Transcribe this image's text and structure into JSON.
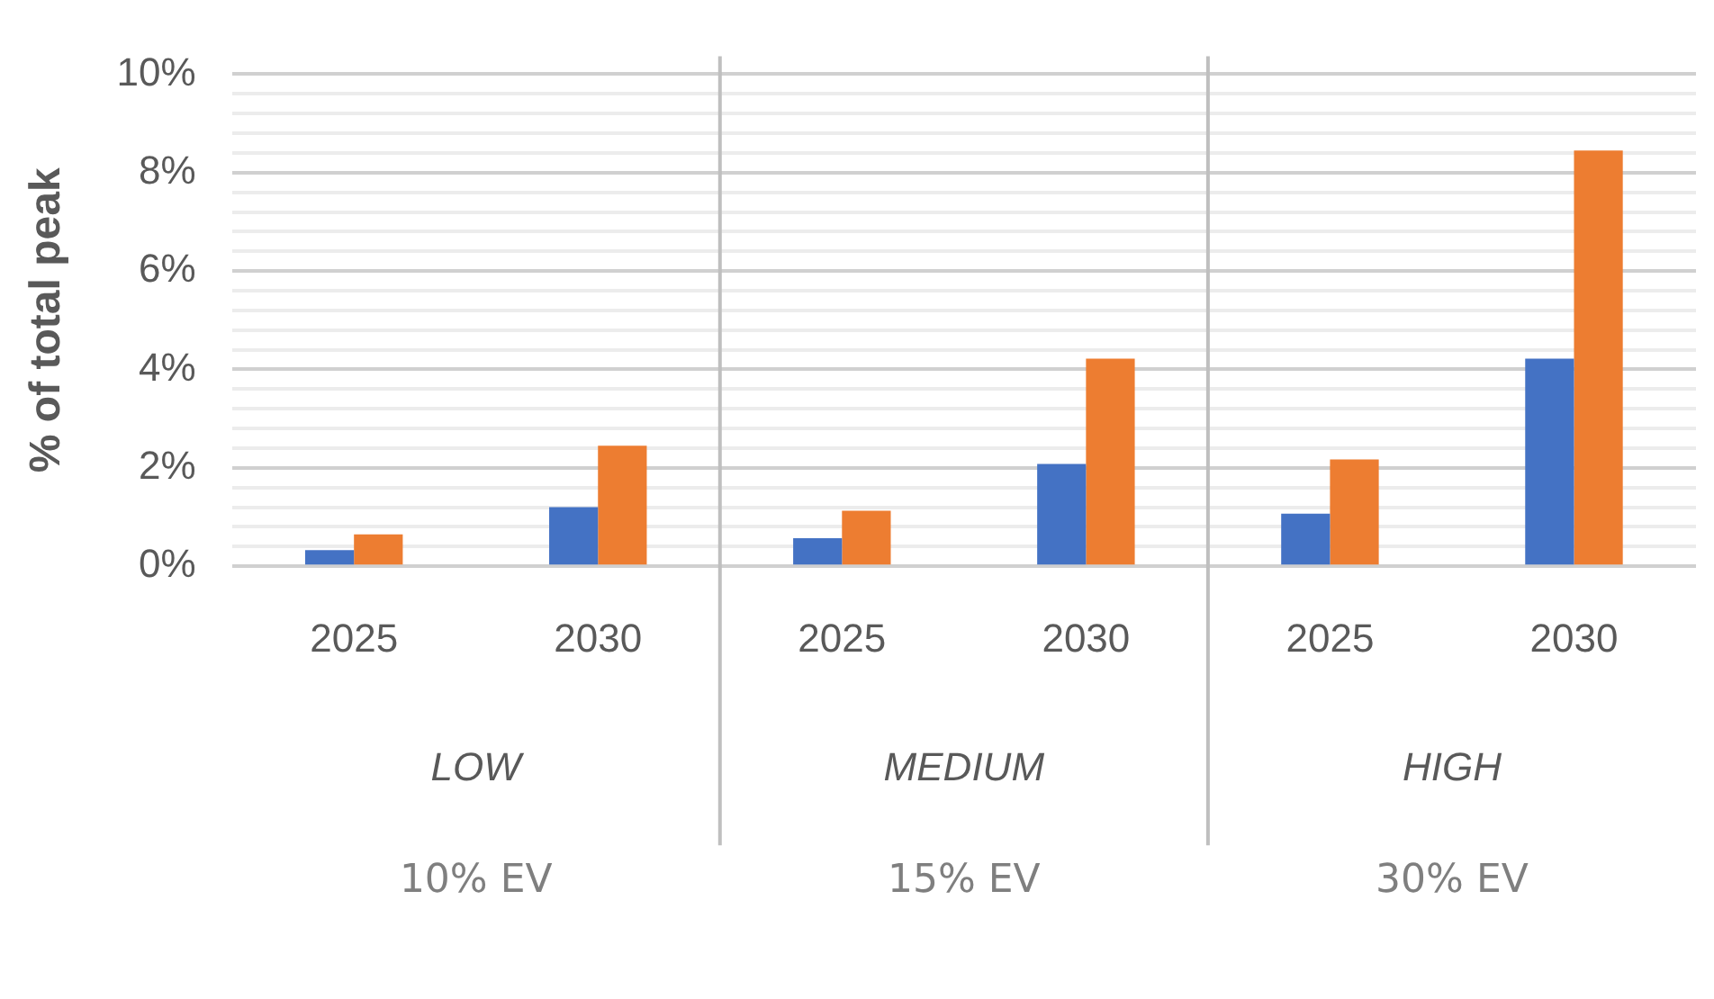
{
  "chart_data": {
    "type": "bar",
    "ylabel": "% of total peak",
    "categories": [
      "2025",
      "2030",
      "2025",
      "2030",
      "2025",
      "2030"
    ],
    "series": [
      {
        "color": "#4472c4",
        "values": [
          0.33,
          1.2,
          0.57,
          2.08,
          1.07,
          4.22
        ]
      },
      {
        "color": "#ed7d31",
        "values": [
          0.65,
          2.45,
          1.13,
          4.22,
          2.17,
          8.45
        ]
      }
    ],
    "ylim": [
      0,
      10
    ],
    "yticks": [
      {
        "value": 0,
        "label": "0%"
      },
      {
        "value": 0.4,
        "label": null
      },
      {
        "value": 0.8,
        "label": null
      },
      {
        "value": 1.2,
        "label": null
      },
      {
        "value": 1.6,
        "label": null
      },
      {
        "value": 2,
        "label": "2%"
      },
      {
        "value": 2.4,
        "label": null
      },
      {
        "value": 2.8,
        "label": null
      },
      {
        "value": 3.2,
        "label": null
      },
      {
        "value": 3.6,
        "label": null
      },
      {
        "value": 4,
        "label": "4%"
      },
      {
        "value": 4.4,
        "label": null
      },
      {
        "value": 4.8,
        "label": null
      },
      {
        "value": 5.2,
        "label": null
      },
      {
        "value": 5.6,
        "label": null
      },
      {
        "value": 6,
        "label": "6%"
      },
      {
        "value": 6.4,
        "label": null
      },
      {
        "value": 6.8,
        "label": null
      },
      {
        "value": 7.2,
        "label": null
      },
      {
        "value": 7.6,
        "label": null
      },
      {
        "value": 8,
        "label": "8%"
      },
      {
        "value": 8.4,
        "label": null
      },
      {
        "value": 8.8,
        "label": null
      },
      {
        "value": 9.2,
        "label": null
      },
      {
        "value": 9.6,
        "label": null
      },
      {
        "value": 10,
        "label": "10%"
      }
    ],
    "grid": "y",
    "annotations": [
      "LOW",
      "MEDIUM",
      "HIGH",
      "10% EV",
      "15% EV",
      "30% EV"
    ]
  }
}
